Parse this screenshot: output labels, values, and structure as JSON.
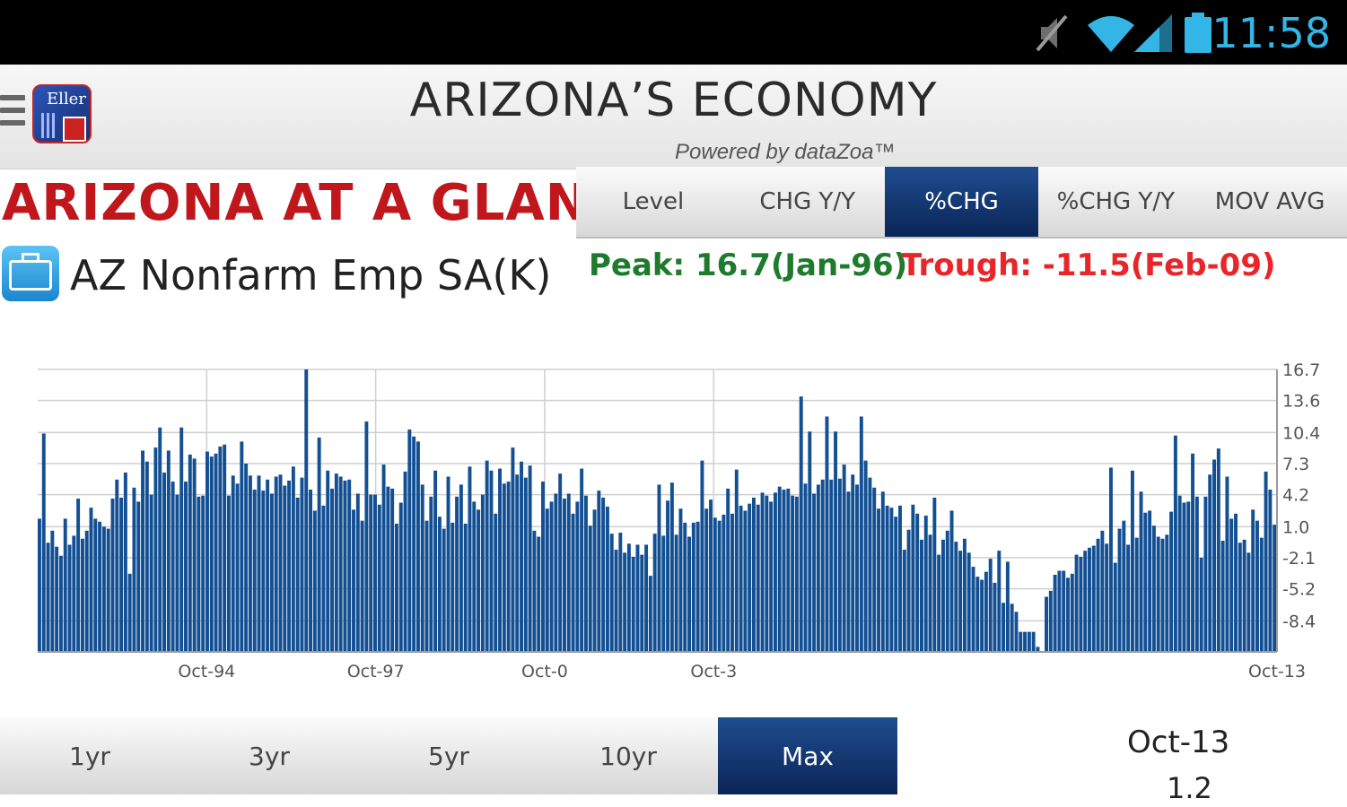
{
  "status_bar": {
    "time": "11:58",
    "icons": [
      "mute-icon",
      "wifi-icon",
      "signal-icon",
      "battery-icon"
    ],
    "accent": "#33b5e5"
  },
  "app_bar": {
    "title": "ARIZONA’S ECONOMY",
    "powered_by": "Powered by dataZoa™",
    "logo_text": "Eller"
  },
  "section_title": "ARIZONA AT A GLANCE",
  "series": {
    "name": "AZ Nonfarm Emp SA(K)",
    "icon": "briefcase-icon",
    "peak": "Peak: 16.7(Jan-96)",
    "trough": "Trough: -11.5(Feb-09)"
  },
  "view_tabs": [
    {
      "label": "Level",
      "active": false
    },
    {
      "label": "CHG Y/Y",
      "active": false
    },
    {
      "label": "%CHG",
      "active": true
    },
    {
      "label": "%CHG Y/Y",
      "active": false
    },
    {
      "label": "MOV AVG",
      "active": false
    }
  ],
  "range_tabs": [
    {
      "label": "1yr",
      "active": false
    },
    {
      "label": "3yr",
      "active": false
    },
    {
      "label": "5yr",
      "active": false
    },
    {
      "label": "10yr",
      "active": false
    },
    {
      "label": "Max",
      "active": true
    }
  ],
  "selected": {
    "date": "Oct-13",
    "value": "1.2"
  },
  "colors": {
    "title_red": "#c0171c",
    "peak_green": "#1e7a2c",
    "trough_red": "#e8262a",
    "bar_blue": "#134f93",
    "active_tab": "#0a2557"
  },
  "chart_data": {
    "type": "bar",
    "x_start": "Oct-91",
    "x_end": "Oct-13",
    "frequency": "monthly",
    "ylim": [
      -11.5,
      16.7
    ],
    "yticks": [
      "16.7",
      "13.6",
      "10.4",
      "7.3",
      "4.2",
      "1.0",
      "-2.1",
      "-5.2",
      "-8.4"
    ],
    "ytick_values": [
      16.7,
      13.6,
      10.4,
      7.3,
      4.2,
      1.0,
      -2.1,
      -5.2,
      -8.4
    ],
    "xticks": [
      "Oct-94",
      "Oct-97",
      "Oct-0",
      "Oct-3",
      "Oct-13"
    ],
    "grid": true,
    "values": [
      1.8,
      10.3,
      -0.6,
      0.6,
      -1.0,
      -1.9,
      1.8,
      -0.8,
      0.1,
      3.8,
      -0.2,
      0.6,
      2.9,
      1.8,
      1.5,
      1.0,
      0.8,
      3.8,
      5.7,
      3.9,
      6.4,
      -3.7,
      4.9,
      3.5,
      8.6,
      7.5,
      4.2,
      8.9,
      10.9,
      6.4,
      8.6,
      5.5,
      4.2,
      10.9,
      5.5,
      8.2,
      7.8,
      4.0,
      4.1,
      8.5,
      8.0,
      8.3,
      9.0,
      9.2,
      4.1,
      6.1,
      5.3,
      9.5,
      7.3,
      6.1,
      4.7,
      6.1,
      4.6,
      5.7,
      4.3,
      6.0,
      6.2,
      5.1,
      5.6,
      7.0,
      3.9,
      5.9,
      16.7,
      4.7,
      2.6,
      9.9,
      3.1,
      6.6,
      4.8,
      6.3,
      6.0,
      5.6,
      5.7,
      2.7,
      4.3,
      1.6,
      11.5,
      4.2,
      4.2,
      3.2,
      7.2,
      5.0,
      4.8,
      1.3,
      3.4,
      6.5,
      10.7,
      10.0,
      9.5,
      5.2,
      1.6,
      4.0,
      6.6,
      2.0,
      0.8,
      6.0,
      1.4,
      4.0,
      5.2,
      1.3,
      7.0,
      3.5,
      2.7,
      4.2,
      7.6,
      6.6,
      2.3,
      6.8,
      5.3,
      5.5,
      8.9,
      6.2,
      7.5,
      5.9,
      7.1,
      0.6,
      0.0,
      5.5,
      2.8,
      3.5,
      4.3,
      6.3,
      3.8,
      4.3,
      2.3,
      3.5,
      6.8,
      4.1,
      1.1,
      2.7,
      4.6,
      3.9,
      3.0,
      0.3,
      -1.3,
      0.4,
      -1.6,
      -0.7,
      -2.0,
      -0.8,
      -1.8,
      -0.8,
      -3.9,
      0.3,
      5.2,
      0.1,
      3.6,
      5.4,
      0.2,
      2.8,
      1.4,
      0.0,
      1.4,
      1.5,
      7.6,
      2.8,
      3.7,
      1.9,
      1.6,
      2.2,
      4.8,
      2.3,
      6.7,
      3.1,
      2.6,
      3.3,
      3.9,
      3.2,
      4.4,
      4.1,
      3.5,
      4.4,
      5.0,
      4.7,
      4.8,
      4.1,
      4.0,
      14.0,
      5.3,
      10.5,
      4.3,
      5.2,
      5.7,
      12.0,
      5.7,
      10.5,
      5.8,
      7.2,
      4.5,
      6.2,
      5.2,
      12.0,
      7.6,
      5.9,
      4.9,
      2.8,
      4.5,
      3.1,
      2.9,
      2.0,
      3.1,
      -1.3,
      0.7,
      3.2,
      2.3,
      -0.3,
      2.1,
      0.2,
      3.9,
      -1.8,
      -0.3,
      0.6,
      2.6,
      -0.5,
      -1.4,
      -0.2,
      -1.6,
      -3.0,
      -4.0,
      -4.3,
      -3.5,
      -2.2,
      -4.6,
      -1.4,
      -6.6,
      -2.5,
      -6.7,
      -7.5,
      -9.5,
      -9.5,
      -9.5,
      -9.5,
      -11.0,
      -11.5,
      -6.0,
      -5.4,
      -3.8,
      -3.4,
      -3.4,
      -4.1,
      -3.7,
      -1.8,
      -2.0,
      -1.4,
      -1.1,
      -0.9,
      -0.2,
      0.6,
      -0.7,
      6.9,
      -2.6,
      0.8,
      1.6,
      -0.8,
      6.6,
      -0.1,
      4.5,
      2.4,
      2.6,
      1.1,
      0.0,
      -0.2,
      0.2,
      2.5,
      10.1,
      4.1,
      3.4,
      3.5,
      8.3,
      4.0,
      -2.1,
      4.0,
      6.2,
      7.7,
      8.8,
      -0.4,
      6.0,
      1.8,
      2.3,
      -0.6,
      -0.3,
      -1.6,
      2.7,
      1.6,
      -0.1,
      6.5,
      4.7,
      1.2
    ]
  }
}
